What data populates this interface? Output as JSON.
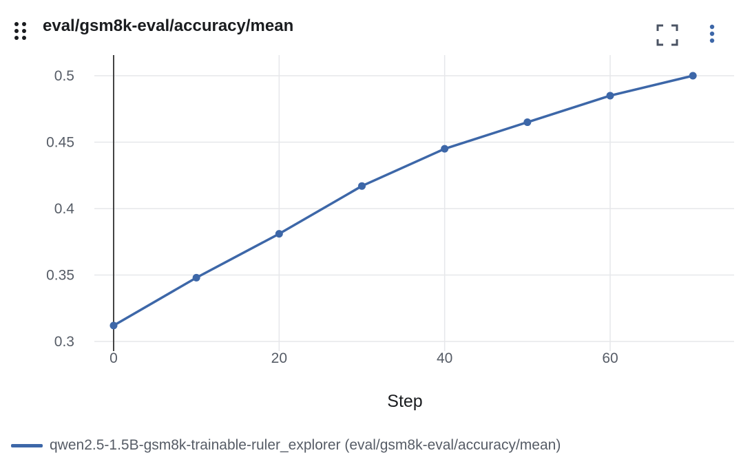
{
  "panel": {
    "title": "eval/gsm8k-eval/accuracy/mean",
    "icons": {
      "drag": "drag-handle-icon",
      "fullscreen": "fullscreen-icon",
      "menu": "more-vertical-icon"
    }
  },
  "colors": {
    "series": "#3d67a8",
    "grid": "#e6e7ea",
    "cursor_line": "#444444",
    "icon": "#4a5363"
  },
  "chart_data": {
    "type": "line",
    "title": "eval/gsm8k-eval/accuracy/mean",
    "xlabel": "Step",
    "ylabel": "",
    "xlim": [
      -6,
      80
    ],
    "ylim": [
      0.3,
      0.51
    ],
    "xticks": [
      0,
      20,
      40,
      60
    ],
    "xtick_labels": [
      "0",
      "20",
      "40",
      "60"
    ],
    "yticks": [
      0.3,
      0.35,
      0.4,
      0.45,
      0.5
    ],
    "ytick_labels": [
      "0.3",
      "0.35",
      "0.4",
      "0.45",
      "0.5"
    ],
    "grid": true,
    "hover_x": 0,
    "legend_position": "bottom-left",
    "series": [
      {
        "name": "qwen2.5-1.5B-gsm8k-trainable-ruler_explorer (eval/gsm8k-eval/accuracy/mean)",
        "color": "#3d67a8",
        "x": [
          0,
          10,
          20,
          30,
          40,
          50,
          60,
          70
        ],
        "y": [
          0.312,
          0.348,
          0.381,
          0.417,
          0.445,
          0.465,
          0.485,
          0.5
        ]
      }
    ]
  }
}
